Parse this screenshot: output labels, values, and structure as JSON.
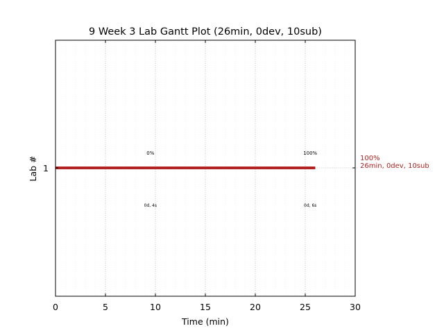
{
  "chart_data": {
    "type": "gantt",
    "title": "9 Week 3 Lab Gantt Plot (26min, 0dev, 10sub)",
    "xlabel": "Time (min)",
    "ylabel": "Lab #",
    "xlim": [
      0,
      30
    ],
    "xticks": [
      0,
      5,
      10,
      15,
      20,
      25,
      30
    ],
    "minor_xticks": [
      1,
      2,
      3,
      4,
      6,
      7,
      8,
      9,
      11,
      12,
      13,
      14,
      16,
      17,
      18,
      19,
      21,
      22,
      23,
      24,
      26,
      27,
      28,
      29
    ],
    "grid": true,
    "bar_color": "#b22222",
    "rows": [
      {
        "lab": "1",
        "start": 0,
        "end": 26,
        "side_label_line1": "100%",
        "side_label_line2": "26min, 0dev, 10sub",
        "annotations": [
          {
            "x": 9.5,
            "top": "0%",
            "bottom": "0d, 4s"
          },
          {
            "x": 25.5,
            "top": "100%",
            "bottom": "0d, 6s"
          }
        ]
      }
    ]
  }
}
